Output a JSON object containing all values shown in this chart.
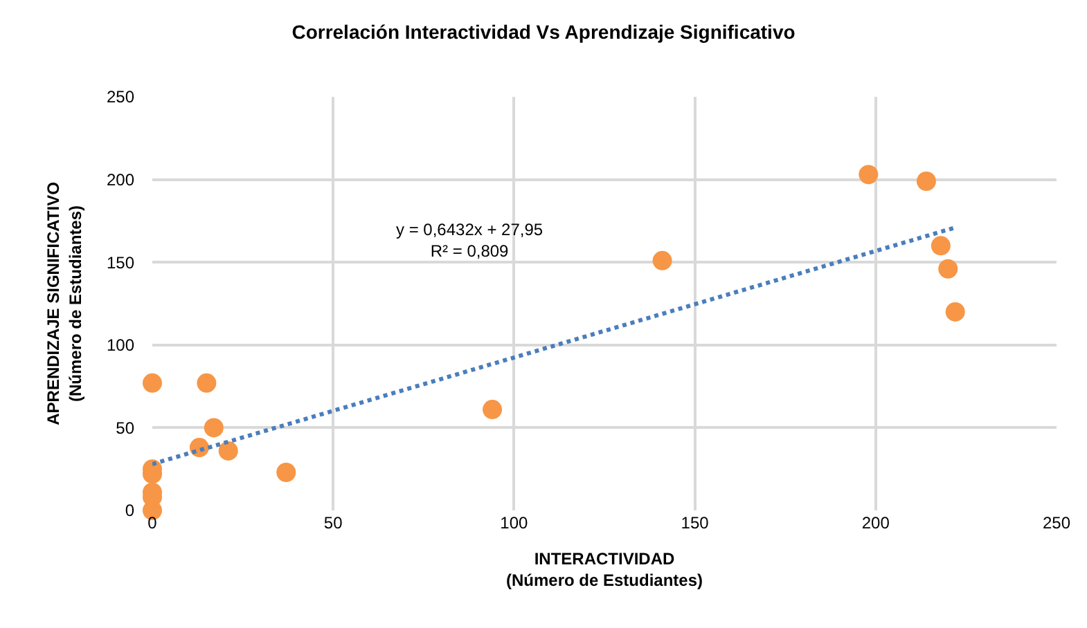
{
  "chart_data": {
    "type": "scatter",
    "title": "Correlación Interactividad Vs Aprendizaje Significativo",
    "xlabel": "INTERACTIVIDAD\n(Número de Estudiantes)",
    "ylabel": "APRENDIZAJE SIGNIFICATIVO\n(Número de Estudiantes)",
    "series": [
      {
        "color": "#f79646",
        "marker": "circle",
        "x": [
          0,
          0,
          0,
          0,
          0,
          0,
          15,
          17,
          13,
          21,
          37,
          94,
          141,
          198,
          214,
          218,
          220,
          222
        ],
        "values": [
          77,
          25,
          22,
          11,
          8,
          0,
          77,
          50,
          38,
          36,
          23,
          61,
          151,
          203,
          199,
          160,
          146,
          120
        ]
      },
      {
        "type": "line",
        "color": "#4a7ebb",
        "line_style": "dotted",
        "marker": "none",
        "x": [
          0,
          222
        ],
        "values": [
          28,
          171
        ]
      }
    ],
    "annotations": [
      "y = 0,6432x + 27,95\nR² = 0,809"
    ],
    "xlim": [
      0,
      250
    ],
    "xticks": [
      0,
      50,
      100,
      150,
      200,
      250
    ],
    "ylim": [
      0,
      250
    ],
    "yticks": [
      0,
      50,
      100,
      150,
      200,
      250
    ],
    "grid": true
  }
}
